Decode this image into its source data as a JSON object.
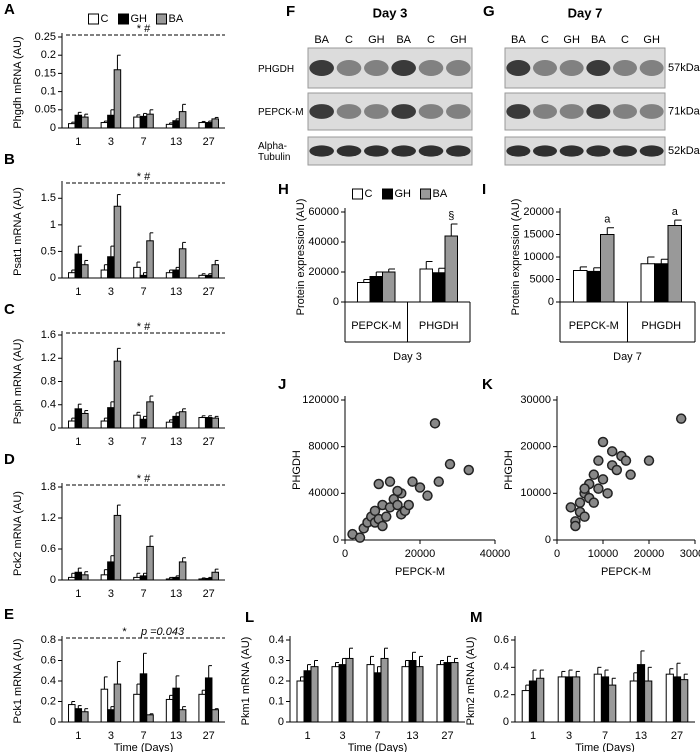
{
  "chart_data": [
    {
      "panel": "A",
      "type": "bar",
      "ylabel": "Phgdh mRNA (AU)",
      "categories": [
        "1",
        "3",
        "7",
        "13",
        "27"
      ],
      "legend": "top",
      "annotations": [
        "* #"
      ],
      "ylim": [
        0,
        0.25
      ],
      "yticks": [
        0,
        0.05,
        0.1,
        0.15,
        0.2,
        0.25
      ],
      "series": [
        {
          "name": "C",
          "color": "#ffffff",
          "values": [
            0.012,
            0.015,
            0.03,
            0.01,
            0.015
          ],
          "errors": [
            0.004,
            0.004,
            0.006,
            0.004,
            0.003
          ]
        },
        {
          "name": "GH",
          "color": "#000000",
          "values": [
            0.035,
            0.035,
            0.032,
            0.02,
            0.015
          ],
          "errors": [
            0.008,
            0.015,
            0.008,
            0.005,
            0.004
          ]
        },
        {
          "name": "BA",
          "color": "#999999",
          "values": [
            0.03,
            0.16,
            0.038,
            0.045,
            0.025
          ],
          "errors": [
            0.008,
            0.04,
            0.012,
            0.02,
            0.004
          ]
        }
      ]
    },
    {
      "panel": "B",
      "type": "bar",
      "ylabel": "Psat1 mRNA (AU)",
      "categories": [
        "1",
        "3",
        "7",
        "13",
        "27"
      ],
      "annotations": [
        "* #"
      ],
      "ylim": [
        0,
        1.75
      ],
      "yticks": [
        0,
        0.5,
        1,
        1.5
      ],
      "series": [
        {
          "name": "C",
          "color": "#ffffff",
          "values": [
            0.1,
            0.15,
            0.2,
            0.1,
            0.05
          ],
          "errors": [
            0.05,
            0.1,
            0.1,
            0.05,
            0.03
          ]
        },
        {
          "name": "GH",
          "color": "#000000",
          "values": [
            0.45,
            0.4,
            0.05,
            0.15,
            0.05
          ],
          "errors": [
            0.15,
            0.2,
            0.05,
            0.05,
            0.03
          ]
        },
        {
          "name": "BA",
          "color": "#999999",
          "values": [
            0.25,
            1.35,
            0.7,
            0.55,
            0.25
          ],
          "errors": [
            0.08,
            0.22,
            0.15,
            0.12,
            0.08
          ]
        }
      ]
    },
    {
      "panel": "C",
      "type": "bar",
      "ylabel": "Psph mRNA (AU)",
      "categories": [
        "1",
        "3",
        "7",
        "13",
        "27"
      ],
      "annotations": [
        "* #"
      ],
      "ylim": [
        0,
        1.6
      ],
      "yticks": [
        0,
        0.4,
        0.8,
        1.2,
        1.6
      ],
      "series": [
        {
          "name": "C",
          "color": "#ffffff",
          "values": [
            0.12,
            0.12,
            0.22,
            0.1,
            0.18
          ],
          "errors": [
            0.05,
            0.05,
            0.05,
            0.04,
            0.03
          ]
        },
        {
          "name": "GH",
          "color": "#000000",
          "values": [
            0.33,
            0.35,
            0.15,
            0.2,
            0.18
          ],
          "errors": [
            0.08,
            0.1,
            0.05,
            0.06,
            0.03
          ]
        },
        {
          "name": "BA",
          "color": "#999999",
          "values": [
            0.25,
            1.15,
            0.45,
            0.28,
            0.17
          ],
          "errors": [
            0.05,
            0.22,
            0.1,
            0.05,
            0.03
          ]
        }
      ]
    },
    {
      "panel": "D",
      "type": "bar",
      "ylabel": "Pck2 mRNA (AU)",
      "categories": [
        "1",
        "3",
        "7",
        "13",
        "27"
      ],
      "annotations": [
        "* #"
      ],
      "ylim": [
        0,
        1.8
      ],
      "yticks": [
        0,
        0.6,
        1.2,
        1.8
      ],
      "series": [
        {
          "name": "C",
          "color": "#ffffff",
          "values": [
            0.05,
            0.1,
            0.05,
            0.02,
            0.02
          ],
          "errors": [
            0.08,
            0.1,
            0.08,
            0.03,
            0.02
          ]
        },
        {
          "name": "GH",
          "color": "#000000",
          "values": [
            0.15,
            0.35,
            0.08,
            0.05,
            0.03
          ],
          "errors": [
            0.08,
            0.12,
            0.05,
            0.03,
            0.02
          ]
        },
        {
          "name": "BA",
          "color": "#999999",
          "values": [
            0.1,
            1.25,
            0.65,
            0.35,
            0.15
          ],
          "errors": [
            0.06,
            0.2,
            0.2,
            0.08,
            0.06
          ]
        }
      ]
    },
    {
      "panel": "E",
      "type": "bar",
      "ylabel": "Pck1 mRNA (AU)",
      "xlabel": "Time (Days)",
      "categories": [
        "1",
        "3",
        "7",
        "13",
        "27"
      ],
      "annotations": [
        "*",
        "p =0.043"
      ],
      "ylim": [
        0,
        0.8
      ],
      "yticks": [
        0,
        0.2,
        0.4,
        0.6,
        0.8
      ],
      "series": [
        {
          "name": "C",
          "color": "#ffffff",
          "values": [
            0.17,
            0.32,
            0.27,
            0.22,
            0.27
          ],
          "errors": [
            0.03,
            0.12,
            0.1,
            0.04,
            0.04
          ]
        },
        {
          "name": "GH",
          "color": "#000000",
          "values": [
            0.13,
            0.12,
            0.47,
            0.33,
            0.43
          ],
          "errors": [
            0.03,
            0.03,
            0.2,
            0.12,
            0.12
          ]
        },
        {
          "name": "BA",
          "color": "#999999",
          "values": [
            0.1,
            0.37,
            0.07,
            0.12,
            0.12
          ],
          "errors": [
            0.03,
            0.22,
            0.01,
            0.03,
            0.01
          ]
        }
      ]
    },
    {
      "panel": "L",
      "type": "bar",
      "ylabel": "Pkm1 mRNA (AU)",
      "xlabel": "Time (Days)",
      "categories": [
        "1",
        "3",
        "7",
        "13",
        "27"
      ],
      "ylim": [
        0,
        0.4
      ],
      "yticks": [
        0,
        0.1,
        0.2,
        0.3,
        0.4
      ],
      "series": [
        {
          "name": "C",
          "color": "#ffffff",
          "values": [
            0.2,
            0.27,
            0.28,
            0.27,
            0.28
          ],
          "errors": [
            0.02,
            0.02,
            0.04,
            0.03,
            0.02
          ]
        },
        {
          "name": "GH",
          "color": "#000000",
          "values": [
            0.25,
            0.28,
            0.24,
            0.3,
            0.29
          ],
          "errors": [
            0.03,
            0.03,
            0.03,
            0.04,
            0.03
          ]
        },
        {
          "name": "BA",
          "color": "#999999",
          "values": [
            0.27,
            0.31,
            0.31,
            0.27,
            0.29
          ],
          "errors": [
            0.03,
            0.05,
            0.05,
            0.05,
            0.02
          ]
        }
      ]
    },
    {
      "panel": "M",
      "type": "bar",
      "ylabel": "Pkm2 mRNA (AU)",
      "xlabel": "Time (Days)",
      "categories": [
        "1",
        "3",
        "7",
        "13",
        "27"
      ],
      "ylim": [
        0,
        0.6
      ],
      "yticks": [
        0,
        0.2,
        0.4,
        0.6
      ],
      "series": [
        {
          "name": "C",
          "color": "#ffffff",
          "values": [
            0.23,
            0.33,
            0.35,
            0.3,
            0.35
          ],
          "errors": [
            0.04,
            0.04,
            0.05,
            0.06,
            0.04
          ]
        },
        {
          "name": "GH",
          "color": "#000000",
          "values": [
            0.3,
            0.33,
            0.33,
            0.42,
            0.33
          ],
          "errors": [
            0.08,
            0.05,
            0.05,
            0.1,
            0.1
          ]
        },
        {
          "name": "BA",
          "color": "#999999",
          "values": [
            0.32,
            0.33,
            0.27,
            0.3,
            0.31
          ],
          "errors": [
            0.06,
            0.04,
            0.05,
            0.1,
            0.04
          ]
        }
      ]
    },
    {
      "panel": "H",
      "type": "bar",
      "ylabel": "Protein expression (AU)",
      "xlabel": "Day 3",
      "categories": [
        "PEPCK-M",
        "PHGDH"
      ],
      "legend": "top",
      "marker_annotations": [
        {
          "series": 2,
          "index": 1,
          "text": "§"
        }
      ],
      "ylim": [
        0,
        60000
      ],
      "yticks": [
        0,
        20000,
        40000,
        60000
      ],
      "series": [
        {
          "name": "C",
          "color": "#ffffff",
          "values": [
            13000,
            22000
          ],
          "errors": [
            2000,
            5000
          ]
        },
        {
          "name": "GH",
          "color": "#000000",
          "values": [
            17000,
            19500
          ],
          "errors": [
            3000,
            3000
          ]
        },
        {
          "name": "BA",
          "color": "#999999",
          "values": [
            20000,
            44000
          ],
          "errors": [
            2000,
            8000
          ]
        }
      ]
    },
    {
      "panel": "I",
      "type": "bar",
      "ylabel": "Protein expression (AU)",
      "xlabel": "Day 7",
      "categories": [
        "PEPCK-M",
        "PHGDH"
      ],
      "marker_annotations": [
        {
          "series": 2,
          "index": 0,
          "text": "a"
        },
        {
          "series": 2,
          "index": 1,
          "text": "a"
        }
      ],
      "ylim": [
        0,
        20000
      ],
      "yticks": [
        0,
        5000,
        10000,
        15000,
        20000
      ],
      "series": [
        {
          "name": "C",
          "color": "#ffffff",
          "values": [
            7000,
            8500
          ],
          "errors": [
            800,
            1500
          ]
        },
        {
          "name": "GH",
          "color": "#000000",
          "values": [
            6800,
            8500
          ],
          "errors": [
            800,
            1000
          ]
        },
        {
          "name": "BA",
          "color": "#999999",
          "values": [
            15000,
            17000
          ],
          "errors": [
            1500,
            1200
          ]
        }
      ]
    },
    {
      "panel": "J",
      "type": "scatter",
      "xlabel": "PEPCK-M",
      "ylabel": "PHGDH",
      "color": "#888888",
      "xlim": [
        0,
        40000
      ],
      "xticks": [
        0,
        20000,
        40000
      ],
      "ylim": [
        0,
        120000
      ],
      "yticks": [
        0,
        40000,
        80000,
        120000
      ],
      "x": [
        2000,
        4000,
        5000,
        6000,
        7000,
        8000,
        8000,
        9000,
        10000,
        10000,
        11000,
        12000,
        13000,
        14000,
        15000,
        15000,
        16000,
        17000,
        18000,
        20000,
        22000,
        24000,
        25000,
        28000,
        33000,
        12000,
        9000,
        14000
      ],
      "values": [
        5000,
        2000,
        10000,
        15000,
        20000,
        15000,
        25000,
        18000,
        12000,
        30000,
        20000,
        28000,
        35000,
        30000,
        22000,
        40000,
        25000,
        30000,
        50000,
        45000,
        38000,
        100000,
        50000,
        65000,
        60000,
        50000,
        48000,
        42000
      ]
    },
    {
      "panel": "K",
      "type": "scatter",
      "xlabel": "PEPCK-M",
      "ylabel": "PHGDH",
      "color": "#888888",
      "xlim": [
        0,
        30000
      ],
      "xticks": [
        0,
        10000,
        20000,
        30000
      ],
      "ylim": [
        0,
        30000
      ],
      "yticks": [
        0,
        10000,
        20000,
        30000
      ],
      "x": [
        3000,
        4000,
        4000,
        5000,
        5000,
        6000,
        6000,
        7000,
        7000,
        8000,
        8000,
        9000,
        9000,
        10000,
        10000,
        11000,
        12000,
        12000,
        13000,
        14000,
        15000,
        16000,
        20000,
        27000,
        6000
      ],
      "values": [
        7000,
        4000,
        3000,
        6000,
        8000,
        5000,
        10000,
        9000,
        12000,
        8000,
        14000,
        11000,
        17000,
        21000,
        13000,
        10000,
        19000,
        16000,
        15000,
        18000,
        17000,
        14000,
        17000,
        26000,
        11000
      ]
    }
  ],
  "blots": [
    {
      "panel": "F",
      "title": "Day 3",
      "lanes": [
        "BA",
        "C",
        "GH",
        "BA",
        "C",
        "GH"
      ],
      "rows": [
        "PHGDH",
        "PEPCK-M",
        "Alpha-Tubulin"
      ]
    },
    {
      "panel": "G",
      "title": "Day 7",
      "lanes": [
        "BA",
        "C",
        "GH",
        "BA",
        "C",
        "GH"
      ],
      "sizes": [
        "57kDa",
        "71kDa",
        "52kDa"
      ]
    }
  ]
}
